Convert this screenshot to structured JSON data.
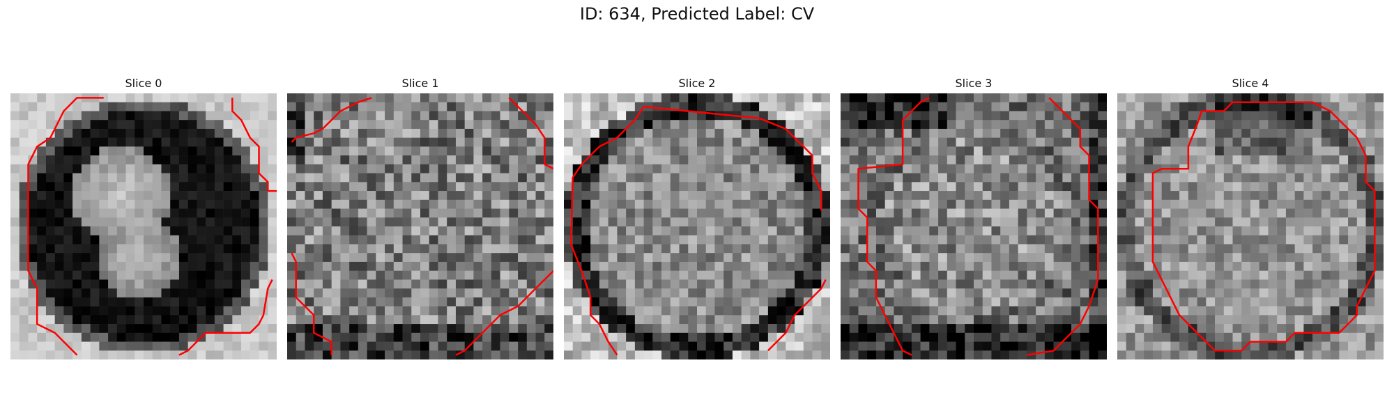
{
  "figure": {
    "title": "ID: 634, Predicted Label: CV"
  },
  "panels": [
    {
      "title": "Slice 0"
    },
    {
      "title": "Slice 1"
    },
    {
      "title": "Slice 2"
    },
    {
      "title": "Slice 3"
    },
    {
      "title": "Slice 4"
    }
  ],
  "colors": {
    "contour": "#ff0000",
    "background": "#ffffff"
  },
  "image": {
    "colormap": "gray",
    "grid": "30x30"
  }
}
